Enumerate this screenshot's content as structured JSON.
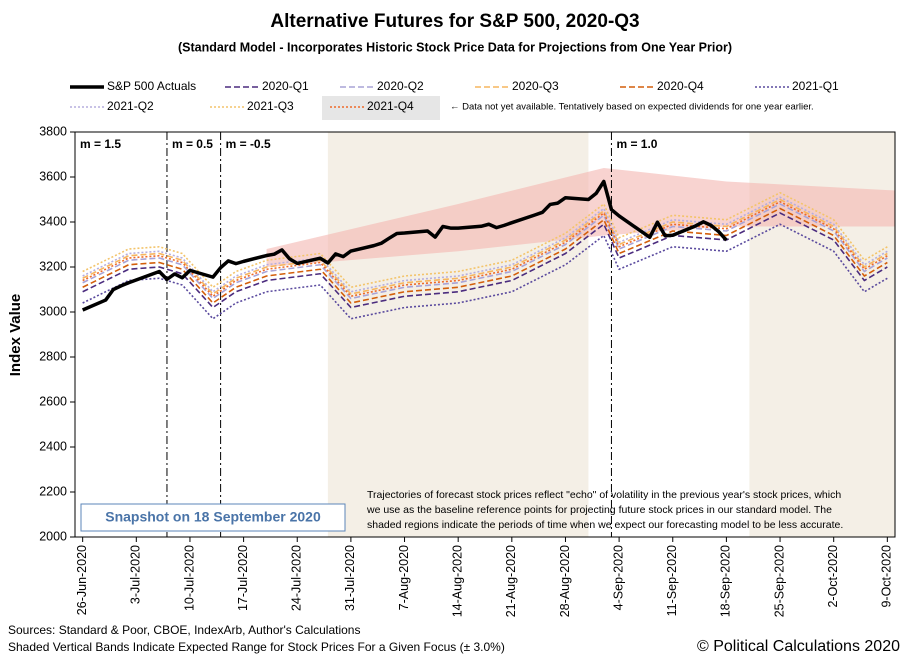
{
  "chart_data": {
    "type": "line",
    "title": "Alternative Futures for S&P 500, 2020-Q3",
    "subtitle": "(Standard Model - Incorporates Historic Stock Price Data for Projections from One Year Prior)",
    "y_label": "Index Value",
    "xlim": [
      "2020-06-25",
      "2020-10-10"
    ],
    "ylim": [
      2000,
      3800
    ],
    "yticks": [
      2000,
      2200,
      2400,
      2600,
      2800,
      3000,
      3200,
      3400,
      3600,
      3800
    ],
    "xticks": [
      {
        "value": "2020-06-26",
        "label": "26-Jun-2020"
      },
      {
        "value": "2020-07-03",
        "label": "3-Jul-2020"
      },
      {
        "value": "2020-07-10",
        "label": "10-Jul-2020"
      },
      {
        "value": "2020-07-17",
        "label": "17-Jul-2020"
      },
      {
        "value": "2020-07-24",
        "label": "24-Jul-2020"
      },
      {
        "value": "2020-07-31",
        "label": "31-Jul-2020"
      },
      {
        "value": "2020-08-07",
        "label": "7-Aug-2020"
      },
      {
        "value": "2020-08-14",
        "label": "14-Aug-2020"
      },
      {
        "value": "2020-08-21",
        "label": "21-Aug-2020"
      },
      {
        "value": "2020-08-28",
        "label": "28-Aug-2020"
      },
      {
        "value": "2020-09-04",
        "label": "4-Sep-2020"
      },
      {
        "value": "2020-09-11",
        "label": "11-Sep-2020"
      },
      {
        "value": "2020-09-18",
        "label": "18-Sep-2020"
      },
      {
        "value": "2020-09-25",
        "label": "25-Sep-2020"
      },
      {
        "value": "2020-10-02",
        "label": "2-Oct-2020"
      },
      {
        "value": "2020-10-09",
        "label": "9-Oct-2020"
      }
    ],
    "shaded_periods": [
      [
        "2020-07-28",
        "2020-08-31"
      ],
      [
        "2020-09-21",
        "2020-10-10"
      ]
    ],
    "shaded_range": {
      "x": [
        "2020-07-20",
        "2020-08-14",
        "2020-09-02",
        "2020-09-18",
        "2020-10-10"
      ],
      "lower": [
        3200,
        3270,
        3340,
        3380,
        3380
      ],
      "upper": [
        3280,
        3480,
        3640,
        3580,
        3540
      ],
      "color": "#f4b6b0"
    },
    "regimes": [
      {
        "label": "m = 1.5"
      },
      {
        "label": "m = 0.5",
        "date": "2020-07-07"
      },
      {
        "label": "m = -0.5",
        "date": "2020-07-14"
      },
      {
        "label": "m = 1.0",
        "date": "2020-09-03"
      }
    ],
    "series": [
      {
        "name": "S&P 500 Actuals",
        "color": "#000000",
        "dash": "solid",
        "x": [
          "2020-06-26",
          "2020-06-29",
          "2020-06-30",
          "2020-07-01",
          "2020-07-02",
          "2020-07-06",
          "2020-07-07",
          "2020-07-08",
          "2020-07-09",
          "2020-07-10",
          "2020-07-13",
          "2020-07-14",
          "2020-07-15",
          "2020-07-16",
          "2020-07-17",
          "2020-07-20",
          "2020-07-21",
          "2020-07-22",
          "2020-07-23",
          "2020-07-24",
          "2020-07-27",
          "2020-07-28",
          "2020-07-29",
          "2020-07-30",
          "2020-07-31",
          "2020-08-03",
          "2020-08-04",
          "2020-08-05",
          "2020-08-06",
          "2020-08-07",
          "2020-08-10",
          "2020-08-11",
          "2020-08-12",
          "2020-08-13",
          "2020-08-14",
          "2020-08-17",
          "2020-08-18",
          "2020-08-19",
          "2020-08-20",
          "2020-08-21",
          "2020-08-24",
          "2020-08-25",
          "2020-08-26",
          "2020-08-27",
          "2020-08-28",
          "2020-08-31",
          "2020-09-01",
          "2020-09-02",
          "2020-09-03",
          "2020-09-04",
          "2020-09-08",
          "2020-09-09",
          "2020-09-10",
          "2020-09-11",
          "2020-09-14",
          "2020-09-15",
          "2020-09-16",
          "2020-09-17",
          "2020-09-18"
        ],
        "values": [
          3009,
          3053,
          3100,
          3116,
          3130,
          3180,
          3145,
          3169,
          3152,
          3185,
          3155,
          3197,
          3227,
          3215,
          3225,
          3251,
          3257,
          3276,
          3236,
          3216,
          3239,
          3218,
          3258,
          3246,
          3271,
          3295,
          3306,
          3328,
          3349,
          3351,
          3360,
          3333,
          3380,
          3373,
          3373,
          3381,
          3390,
          3375,
          3385,
          3397,
          3431,
          3443,
          3478,
          3484,
          3508,
          3500,
          3527,
          3580,
          3455,
          3427,
          3332,
          3399,
          3339,
          3341,
          3383,
          3401,
          3385,
          3357,
          3319
        ]
      },
      {
        "name": "2020-Q1",
        "color": "#4b2c7e",
        "dash": "dashed",
        "x": [
          "2020-06-26",
          "2020-07-02",
          "2020-07-06",
          "2020-07-09",
          "2020-07-13",
          "2020-07-16",
          "2020-07-20",
          "2020-07-27",
          "2020-07-31",
          "2020-08-07",
          "2020-08-14",
          "2020-08-21",
          "2020-08-28",
          "2020-09-02",
          "2020-09-04",
          "2020-09-11",
          "2020-09-18",
          "2020-09-25",
          "2020-10-02",
          "2020-10-06",
          "2020-10-09"
        ],
        "values": [
          3090,
          3190,
          3200,
          3170,
          3020,
          3090,
          3140,
          3170,
          3020,
          3070,
          3090,
          3140,
          3260,
          3390,
          3240,
          3340,
          3320,
          3440,
          3320,
          3140,
          3200
        ]
      },
      {
        "name": "2020-Q2",
        "color": "#a9a3d6",
        "dash": "dashed",
        "x": [
          "2020-06-26",
          "2020-07-02",
          "2020-07-06",
          "2020-07-09",
          "2020-07-13",
          "2020-07-16",
          "2020-07-20",
          "2020-07-27",
          "2020-07-31",
          "2020-08-07",
          "2020-08-14",
          "2020-08-21",
          "2020-08-28",
          "2020-09-02",
          "2020-09-04",
          "2020-09-11",
          "2020-09-18",
          "2020-09-25",
          "2020-10-02",
          "2020-10-06",
          "2020-10-09"
        ],
        "values": [
          3130,
          3230,
          3240,
          3210,
          3060,
          3130,
          3180,
          3210,
          3060,
          3110,
          3130,
          3180,
          3300,
          3430,
          3280,
          3380,
          3360,
          3480,
          3360,
          3180,
          3240
        ]
      },
      {
        "name": "2020-Q3",
        "color": "#f6b55e",
        "dash": "dashed",
        "x": [
          "2020-06-26",
          "2020-07-02",
          "2020-07-06",
          "2020-07-09",
          "2020-07-13",
          "2020-07-16",
          "2020-07-20",
          "2020-07-27",
          "2020-07-31",
          "2020-08-07",
          "2020-08-14",
          "2020-08-21",
          "2020-08-28",
          "2020-09-02",
          "2020-09-04",
          "2020-09-11",
          "2020-09-18",
          "2020-09-25",
          "2020-10-02",
          "2020-10-06",
          "2020-10-09"
        ],
        "values": [
          3150,
          3250,
          3260,
          3230,
          3080,
          3150,
          3200,
          3230,
          3080,
          3130,
          3150,
          3200,
          3320,
          3450,
          3300,
          3400,
          3380,
          3500,
          3380,
          3200,
          3260
        ]
      },
      {
        "name": "2020-Q4",
        "color": "#d35f0b",
        "dash": "dashed",
        "x": [
          "2020-06-26",
          "2020-07-02",
          "2020-07-06",
          "2020-07-09",
          "2020-07-13",
          "2020-07-16",
          "2020-07-20",
          "2020-07-27",
          "2020-07-31",
          "2020-08-07",
          "2020-08-14",
          "2020-08-21",
          "2020-08-28",
          "2020-09-02",
          "2020-09-04",
          "2020-09-11",
          "2020-09-18",
          "2020-09-25",
          "2020-10-02",
          "2020-10-06",
          "2020-10-09"
        ],
        "values": [
          3110,
          3210,
          3220,
          3190,
          3040,
          3110,
          3160,
          3190,
          3040,
          3090,
          3110,
          3160,
          3280,
          3410,
          3260,
          3360,
          3340,
          3460,
          3340,
          3160,
          3220
        ]
      },
      {
        "name": "2021-Q1",
        "color": "#5a4a9e",
        "dash": "dotted",
        "x": [
          "2020-06-26",
          "2020-07-02",
          "2020-07-06",
          "2020-07-09",
          "2020-07-13",
          "2020-07-16",
          "2020-07-20",
          "2020-07-27",
          "2020-07-31",
          "2020-08-07",
          "2020-08-14",
          "2020-08-21",
          "2020-08-28",
          "2020-09-02",
          "2020-09-04",
          "2020-09-11",
          "2020-09-18",
          "2020-09-25",
          "2020-10-02",
          "2020-10-06",
          "2020-10-09"
        ],
        "values": [
          3040,
          3140,
          3150,
          3120,
          2970,
          3040,
          3090,
          3120,
          2970,
          3020,
          3040,
          3090,
          3210,
          3340,
          3190,
          3290,
          3270,
          3390,
          3270,
          3090,
          3150
        ]
      },
      {
        "name": "2021-Q2",
        "color": "#b6aede",
        "dash": "dotted",
        "x": [
          "2020-06-26",
          "2020-07-02",
          "2020-07-06",
          "2020-07-09",
          "2020-07-13",
          "2020-07-16",
          "2020-07-20",
          "2020-07-27",
          "2020-07-31",
          "2020-08-07",
          "2020-08-14",
          "2020-08-21",
          "2020-08-28",
          "2020-09-02",
          "2020-09-04",
          "2020-09-11",
          "2020-09-18",
          "2020-09-25",
          "2020-10-02",
          "2020-10-06",
          "2020-10-09"
        ],
        "values": [
          3160,
          3260,
          3270,
          3240,
          3090,
          3160,
          3210,
          3240,
          3090,
          3140,
          3160,
          3210,
          3330,
          3460,
          3310,
          3410,
          3390,
          3510,
          3390,
          3210,
          3270
        ]
      },
      {
        "name": "2021-Q3",
        "color": "#f3c46b",
        "dash": "dotted",
        "x": [
          "2020-06-26",
          "2020-07-02",
          "2020-07-06",
          "2020-07-09",
          "2020-07-13",
          "2020-07-16",
          "2020-07-20",
          "2020-07-27",
          "2020-07-31",
          "2020-08-07",
          "2020-08-14",
          "2020-08-21",
          "2020-08-28",
          "2020-09-02",
          "2020-09-04",
          "2020-09-11",
          "2020-09-18",
          "2020-09-25",
          "2020-10-02",
          "2020-10-06",
          "2020-10-09"
        ],
        "values": [
          3180,
          3280,
          3290,
          3260,
          3110,
          3180,
          3230,
          3260,
          3110,
          3160,
          3180,
          3230,
          3350,
          3480,
          3330,
          3430,
          3410,
          3530,
          3410,
          3230,
          3290
        ]
      },
      {
        "name": "2021-Q4",
        "color": "#ee6a2a",
        "dash": "dotted",
        "x": [
          "2020-06-26",
          "2020-07-02",
          "2020-07-06",
          "2020-07-09",
          "2020-07-13",
          "2020-07-16",
          "2020-07-20",
          "2020-07-27",
          "2020-07-31",
          "2020-08-07",
          "2020-08-14",
          "2020-08-21",
          "2020-08-28",
          "2020-09-02",
          "2020-09-04",
          "2020-09-11",
          "2020-09-18",
          "2020-09-25",
          "2020-10-02",
          "2020-10-06",
          "2020-10-09"
        ],
        "values": [
          3140,
          3240,
          3250,
          3220,
          3070,
          3140,
          3190,
          3220,
          3070,
          3120,
          3140,
          3190,
          3310,
          3440,
          3290,
          3390,
          3370,
          3490,
          3370,
          3190,
          3250
        ]
      }
    ],
    "legend_note": "← Data not yet available.  Tentatively based on expected dividends for one year earlier.",
    "note_lines": [
      "Trajectories of forecast stock prices reflect \"echo\" of volatility in  the previous year's stock prices, which",
      "we use as the baseline reference points for projecting future stock prices in our standard model.   The",
      "shaded regions indicate the periods of time when we expect our forecasting model to be less accurate."
    ],
    "snapshot": "Snapshot on 18 September 2020",
    "sources": "Sources: Standard & Poor, CBOE, IndexArb, Author's Calculations",
    "footnote": "Shaded Vertical Bands Indicate Expected Range for Stock Prices For a Given Focus (± 3.0%)",
    "copyright": "© Political Calculations 2020"
  }
}
